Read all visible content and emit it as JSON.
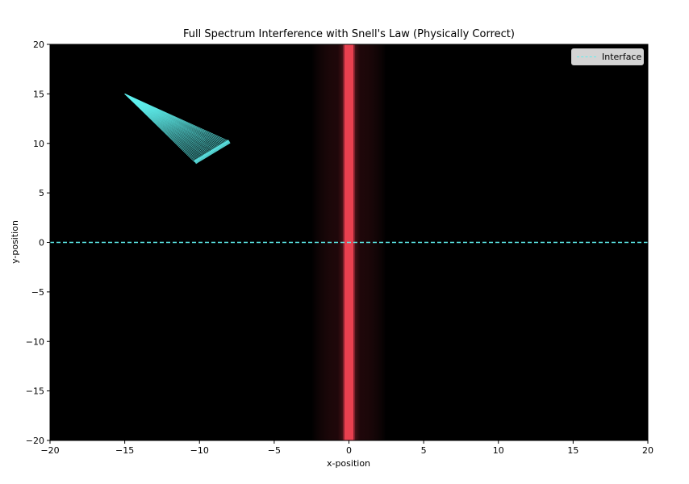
{
  "chart_data": {
    "type": "line",
    "title": "Full Spectrum Interference with Snell's Law (Physically Correct)",
    "xlabel": "x-position",
    "ylabel": "y-position",
    "xlim": [
      -20,
      20
    ],
    "ylim": [
      -20,
      20
    ],
    "x_ticks": [
      -20,
      -15,
      -10,
      -5,
      0,
      5,
      10,
      15,
      20
    ],
    "y_ticks": [
      20,
      15,
      10,
      5,
      0,
      -5,
      -10,
      -15,
      -20
    ],
    "x_tick_labels": [
      "−20",
      "−15",
      "−10",
      "−5",
      "0",
      "5",
      "10",
      "15",
      "20"
    ],
    "y_tick_labels": [
      "20",
      "15",
      "10",
      "5",
      "0",
      "−5",
      "−10",
      "−15",
      "−20"
    ],
    "grid": false,
    "legend_position": "top-right",
    "background": "#000000",
    "series": [
      {
        "name": "Interface",
        "style": "dashed",
        "color": "#5ff0ee",
        "x": [
          -20,
          20
        ],
        "y": [
          0,
          0
        ]
      }
    ],
    "ray_fan": {
      "color": "#5ff0ee",
      "source": [
        -15,
        15
      ],
      "arc_start": [
        -10.3,
        8.1
      ],
      "arc_end": [
        -8.0,
        10.2
      ],
      "ray_count": 30
    },
    "intensity_band": {
      "color": "#e8404f",
      "x_center": 0,
      "half_width": 0.3,
      "glow_half_width": 2.5
    }
  }
}
